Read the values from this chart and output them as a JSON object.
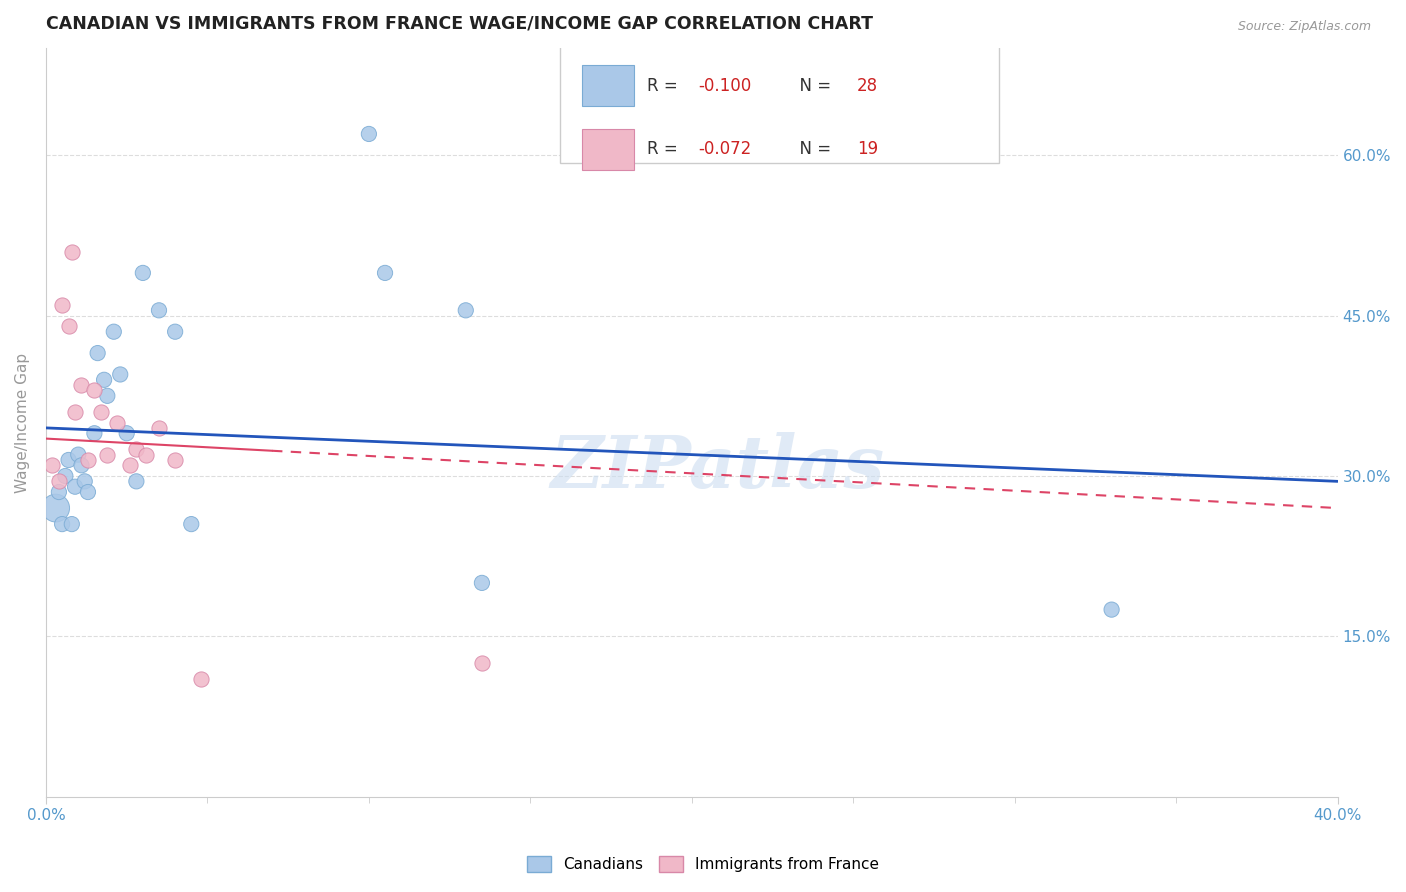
{
  "title": "CANADIAN VS IMMIGRANTS FROM FRANCE WAGE/INCOME GAP CORRELATION CHART",
  "source": "Source: ZipAtlas.com",
  "ylabel": "Wage/Income Gap",
  "xlim": [
    0.0,
    0.4
  ],
  "ylim": [
    0.0,
    0.7
  ],
  "xtick_labels_show": [
    "0.0%",
    "40.0%"
  ],
  "xtick_vals_show": [
    0.0,
    0.4
  ],
  "xtick_minor_vals": [
    0.05,
    0.1,
    0.15,
    0.2,
    0.25,
    0.3,
    0.35
  ],
  "ytick_labels": [
    "15.0%",
    "30.0%",
    "45.0%",
    "60.0%"
  ],
  "ytick_vals": [
    0.15,
    0.3,
    0.45,
    0.6
  ],
  "canadians_x": [
    0.003,
    0.004,
    0.005,
    0.006,
    0.007,
    0.008,
    0.009,
    0.01,
    0.011,
    0.012,
    0.013,
    0.015,
    0.016,
    0.018,
    0.019,
    0.021,
    0.023,
    0.025,
    0.028,
    0.03,
    0.035,
    0.04,
    0.045,
    0.1,
    0.105,
    0.13,
    0.135,
    0.33
  ],
  "canadians_y": [
    0.27,
    0.285,
    0.255,
    0.3,
    0.315,
    0.255,
    0.29,
    0.32,
    0.31,
    0.295,
    0.285,
    0.34,
    0.415,
    0.39,
    0.375,
    0.435,
    0.395,
    0.34,
    0.295,
    0.49,
    0.455,
    0.435,
    0.255,
    0.62,
    0.49,
    0.455,
    0.2,
    0.175
  ],
  "canadians_size_big": 1,
  "immigrants_x": [
    0.002,
    0.004,
    0.005,
    0.007,
    0.008,
    0.009,
    0.011,
    0.013,
    0.015,
    0.017,
    0.019,
    0.022,
    0.026,
    0.028,
    0.031,
    0.035,
    0.04,
    0.048,
    0.135
  ],
  "immigrants_y": [
    0.31,
    0.295,
    0.46,
    0.44,
    0.51,
    0.36,
    0.385,
    0.315,
    0.38,
    0.36,
    0.32,
    0.35,
    0.31,
    0.325,
    0.32,
    0.345,
    0.315,
    0.11,
    0.125
  ],
  "trend_canadian_x0": 0.0,
  "trend_canadian_y0": 0.345,
  "trend_canadian_x1": 0.4,
  "trend_canadian_y1": 0.295,
  "trend_immigrant_x0": 0.0,
  "trend_immigrant_y0": 0.335,
  "trend_immigrant_x1": 0.4,
  "trend_immigrant_y1": 0.27,
  "canadians_color": "#aac8e8",
  "canadians_edge_color": "#7aabd4",
  "immigrants_color": "#f0b8c8",
  "immigrants_edge_color": "#d888a8",
  "trend_canadian_color": "#2255bb",
  "trend_immigrant_color": "#dd4466",
  "R_canadian": -0.1,
  "N_canadian": 28,
  "R_immigrant": -0.072,
  "N_immigrant": 19,
  "legend_box_color_canadian": "#aac8e8",
  "legend_box_color_immigrant": "#f0b8c8",
  "watermark": "ZIPatlas",
  "background_color": "#ffffff",
  "grid_color": "#dddddd",
  "spine_color": "#cccccc",
  "tick_label_color": "#5599cc",
  "title_color": "#222222",
  "ylabel_color": "#999999",
  "source_color": "#999999"
}
